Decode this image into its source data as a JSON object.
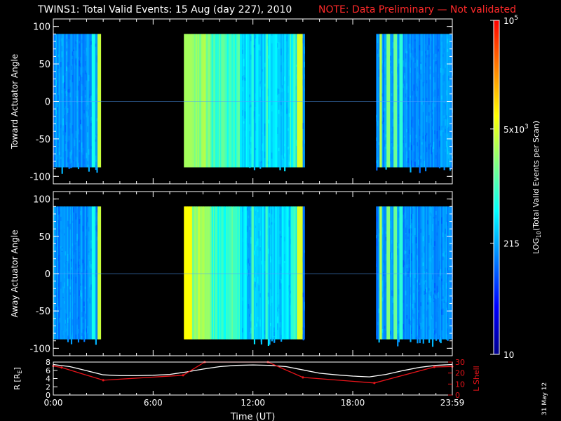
{
  "title": {
    "main": "TWINS1: Total Valid Events: 15 Aug (day 227), 2010",
    "note": "NOTE: Data Preliminary — Not validated"
  },
  "stamp": "31 May 12",
  "colors": {
    "background": "#000000",
    "axis": "#ffffff",
    "note": "#ff2a2a",
    "r_line": "#ffffff",
    "l_line": "#e8141a"
  },
  "chart_data": [
    {
      "type": "heatmap",
      "panel": "top",
      "ylabel": "Toward Actuator Angle",
      "xlim": [
        "0:00",
        "23:59"
      ],
      "ylim": [
        -110,
        110
      ],
      "yticks": [
        100,
        50,
        0,
        -50,
        -100
      ],
      "xticks": [
        "0:00",
        "6:00",
        "12:00",
        "18:00",
        "23:59"
      ],
      "data_intervals_hours": [
        [
          0.0,
          2.85
        ],
        [
          7.85,
          15.1
        ],
        [
          19.4,
          23.98
        ]
      ],
      "y_range_covered": [
        -88,
        90
      ]
    },
    {
      "type": "heatmap",
      "panel": "middle",
      "ylabel": "Away Actuator Angle",
      "xlim": [
        "0:00",
        "23:59"
      ],
      "ylim": [
        -110,
        110
      ],
      "yticks": [
        100,
        50,
        0,
        -50,
        -100
      ],
      "xticks": [
        "0:00",
        "6:00",
        "12:00",
        "18:00",
        "23:59"
      ],
      "data_intervals_hours": [
        [
          0.0,
          2.85
        ],
        [
          7.85,
          15.1
        ],
        [
          19.4,
          23.98
        ]
      ],
      "y_range_covered": [
        -88,
        90
      ]
    },
    {
      "type": "line",
      "panel": "bottom",
      "xlabel": "Time (UT)",
      "ylabel_left": "R [R",
      "ylabel_left_sub": "E",
      "ylabel_left_end": "]",
      "ylabel_right": "L Shell",
      "xticks": [
        "0:00",
        "6:00",
        "12:00",
        "18:00",
        "23:59"
      ],
      "yticks_left": [
        0,
        2,
        4,
        6,
        8
      ],
      "yticks_right": [
        0,
        10,
        20,
        30
      ],
      "ylim_left": [
        0,
        8
      ],
      "ylim_right": [
        0,
        30
      ],
      "series": [
        {
          "name": "R",
          "axis": "left",
          "x": [
            0,
            1,
            2,
            3,
            4,
            5,
            6,
            7,
            8,
            9,
            10,
            11,
            12,
            13,
            14,
            15,
            16,
            17,
            18,
            19,
            20,
            21,
            22,
            23,
            23.98
          ],
          "y": [
            7.4,
            6.9,
            5.9,
            4.9,
            4.7,
            4.7,
            4.8,
            5.0,
            5.6,
            6.3,
            6.9,
            7.2,
            7.3,
            7.2,
            6.9,
            6.1,
            5.3,
            4.9,
            4.6,
            4.4,
            5.0,
            5.9,
            6.7,
            7.2,
            7.4
          ]
        },
        {
          "name": "L Shell",
          "axis": "right",
          "x": [
            0,
            0.5,
            3.0,
            7.8,
            9.1,
            12.9,
            15.0,
            19.3,
            22.9,
            23.98
          ],
          "y": [
            26.5,
            25.0,
            13.5,
            18.0,
            30.0,
            30.0,
            16.0,
            11.0,
            25.5,
            26.0
          ]
        }
      ]
    }
  ],
  "colorbar": {
    "label_main": "LOG",
    "label_sub": "10",
    "label_rest": "(Total Valid Events per Scan)",
    "tick_labels": [
      {
        "base": "10",
        "sup": "5"
      },
      {
        "base": "5x10",
        "sup": "3"
      },
      {
        "base": "215",
        "sup": ""
      },
      {
        "base": "10",
        "sup": ""
      }
    ],
    "tick_log_values": [
      5.0,
      3.699,
      2.332,
      1.0
    ],
    "range_log": [
      1.0,
      5.0
    ],
    "colormap": [
      "#00008b",
      "#0000ff",
      "#0080ff",
      "#00ffff",
      "#80ff80",
      "#ffff00",
      "#ff8000",
      "#ff0000"
    ]
  }
}
